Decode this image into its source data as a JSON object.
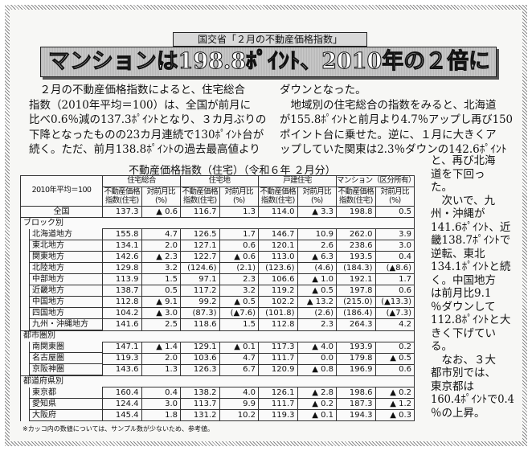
{
  "kicker": "国交省「２月の不動産価格指数」",
  "headline": "マンションは198.8ﾎﾟｲﾝﾄ、2010年の２倍に",
  "left_lines": [
    "　２月の不動産価格指数によると、住宅総合",
    "指数（2010年平均＝100）は、全国が前月に",
    "比べ0.6％減の137.3ﾎﾟｲﾝﾄとなり、３カ月ぶりの",
    "下降となったものの23カ月連続で130ﾎﾟｲﾝﾄ台が",
    "続く。ただ、前月138.8ﾎﾟｲﾝﾄの過去最高値より"
  ],
  "right_lines": [
    "ダウンとなった。",
    "　地域別の住宅総合の指数をみると、北海道",
    "が155.8ﾎﾟｲﾝﾄと前月より4.7％アップし再び150",
    "ポイント台に乗せた。逆に、１月に大きくア",
    "ップしていた関東は2.3％ダウンの142.6ﾎﾟｲﾝﾄ"
  ],
  "narrow_lines": [
    "と、再び北海",
    "道を下回っ",
    "た。",
    "　次いで、九",
    "州・沖縄が",
    "141.6ﾎﾟｲﾝﾄ、近",
    "畿138.7ﾎﾟｲﾝﾄで",
    "逆転、東北",
    "134.1ﾎﾟｲﾝﾄと続",
    "く。中国地方",
    "は前月比9.1",
    "％ダウンして",
    "112.8ﾎﾟｲﾝﾄと大",
    "きく下げてい",
    "る。",
    "　なお、３大",
    "都市別では、",
    "東京都は",
    "160.4ﾎﾟｲﾝﾄで0.4",
    "％の上昇。"
  ],
  "table": {
    "title": "不動産価格指数（住宅）（令和６年 ２月分）",
    "corner": "2010年平均＝100",
    "groups": [
      "住宅総合",
      "住宅地",
      "戸建住宅",
      "マンション（区分所有）"
    ],
    "subheaders": [
      "不動産価格\n指数(住宅)",
      "対前月比\n(%)"
    ],
    "national": {
      "label": "全国",
      "values": [
        "137.3",
        "▲ 0.6",
        "116.7",
        "1.3",
        "114.0",
        "▲ 3.3",
        "198.8",
        "0.5"
      ]
    },
    "sections": [
      {
        "title": "ブロック別",
        "rows": [
          {
            "label": "北海道地方",
            "values": [
              "155.8",
              "4.7",
              "126.5",
              "1.7",
              "146.7",
              "10.9",
              "262.0",
              "3.9"
            ]
          },
          {
            "label": "東北地方",
            "values": [
              "134.1",
              "2.0",
              "127.1",
              "0.6",
              "120.1",
              "2.6",
              "238.6",
              "3.0"
            ]
          },
          {
            "label": "関東地方",
            "values": [
              "142.6",
              "▲ 2.3",
              "122.7",
              "▲ 0.6",
              "113.0",
              "▲ 6.3",
              "193.5",
              "0.4"
            ]
          },
          {
            "label": "北陸地方",
            "values": [
              "129.8",
              "3.2",
              "(124.6)",
              "(2.1)",
              "(123.6)",
              "(4.6)",
              "(184.3)",
              "(▲8.6)"
            ]
          },
          {
            "label": "中部地方",
            "values": [
              "113.9",
              "1.5",
              "97.1",
              "2.3",
              "106.6",
              "▲ 1.0",
              "192.1",
              "1.7"
            ]
          },
          {
            "label": "近畿地方",
            "values": [
              "138.7",
              "0.5",
              "117.2",
              "3.2",
              "119.2",
              "▲ 0.5",
              "197.8",
              "0.6"
            ]
          },
          {
            "label": "中国地方",
            "values": [
              "112.8",
              "▲ 9.1",
              "99.2",
              "▲ 0.5",
              "102.2",
              "▲ 13.2",
              "(215.0)",
              "(▲13.3)"
            ]
          },
          {
            "label": "四国地方",
            "values": [
              "104.2",
              "▲ 3.0",
              "(87.3)",
              "(▲7.6)",
              "(101.8)",
              "(2.6)",
              "(186.4)",
              "(▲7.3)"
            ]
          },
          {
            "label": "九州・沖縄地方",
            "values": [
              "141.6",
              "2.5",
              "118.6",
              "1.5",
              "112.8",
              "2.3",
              "264.3",
              "4.2"
            ]
          }
        ]
      },
      {
        "title": "都市圏別",
        "rows": [
          {
            "label": "南関東圏",
            "values": [
              "147.1",
              "▲ 1.4",
              "129.1",
              "▲ 0.1",
              "117.3",
              "▲ 4.0",
              "193.9",
              "0.2"
            ]
          },
          {
            "label": "名古屋圏",
            "values": [
              "119.3",
              "2.0",
              "103.6",
              "4.7",
              "111.7",
              "0.0",
              "179.8",
              "▲ 0.5"
            ]
          },
          {
            "label": "京阪神圏",
            "values": [
              "143.6",
              "1.3",
              "126.3",
              "6.7",
              "120.9",
              "▲ 0.8",
              "196.9",
              "0.6"
            ]
          }
        ]
      },
      {
        "title": "都道府県別",
        "rows": [
          {
            "label": "東京都",
            "values": [
              "160.4",
              "0.4",
              "138.2",
              "4.0",
              "126.1",
              "▲ 2.8",
              "198.6",
              "▲ 0.2"
            ]
          },
          {
            "label": "愛知県",
            "values": [
              "124.4",
              "3.0",
              "113.7",
              "9.9",
              "111.7",
              "▲ 0.2",
              "187.3",
              "▲ 1.2"
            ]
          },
          {
            "label": "大阪府",
            "values": [
              "145.4",
              "1.8",
              "131.2",
              "10.2",
              "119.3",
              "▲ 0.1",
              "194.3",
              "▲ 0.3"
            ]
          }
        ]
      }
    ],
    "note": "※カッコ内の数値については、サンプル数が少ないため、参考値。"
  }
}
